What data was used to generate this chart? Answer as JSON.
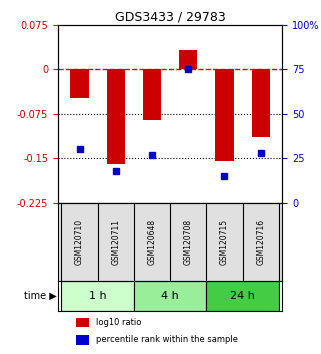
{
  "title": "GDS3433 / 29783",
  "gsm_labels": [
    "GSM120710",
    "GSM120711",
    "GSM120648",
    "GSM120708",
    "GSM120715",
    "GSM120716"
  ],
  "log10_ratio": [
    -0.048,
    -0.16,
    -0.085,
    0.032,
    -0.155,
    -0.115
  ],
  "percentile_rank": [
    30,
    18,
    27,
    75,
    15,
    28
  ],
  "ylim_left": [
    -0.225,
    0.075
  ],
  "ylim_right": [
    0,
    100
  ],
  "bar_color": "#cc0000",
  "dot_color": "#0000cc",
  "hline_y": 0,
  "hline_color": "#cc0000",
  "hline_style": "--",
  "dotted_lines": [
    -0.075,
    -0.15
  ],
  "dotted_color": "black",
  "time_groups": [
    {
      "label": "1 h",
      "indices": [
        0,
        1
      ],
      "color": "#ccffcc"
    },
    {
      "label": "4 h",
      "indices": [
        2,
        3
      ],
      "color": "#99ee99"
    },
    {
      "label": "24 h",
      "indices": [
        4,
        5
      ],
      "color": "#44cc44"
    }
  ],
  "legend_items": [
    {
      "label": "log10 ratio",
      "color": "#cc0000"
    },
    {
      "label": "percentile rank within the sample",
      "color": "#0000cc"
    }
  ],
  "xlabel_time": "time",
  "bg_color": "#ffffff",
  "plot_bg": "#ffffff",
  "left_tick_color": "#cc0000",
  "right_tick_color": "#0000cc",
  "right_yticks": [
    0,
    25,
    50,
    75,
    100
  ],
  "right_ytick_labels": [
    "0",
    "25",
    "50",
    "75",
    "100%"
  ]
}
